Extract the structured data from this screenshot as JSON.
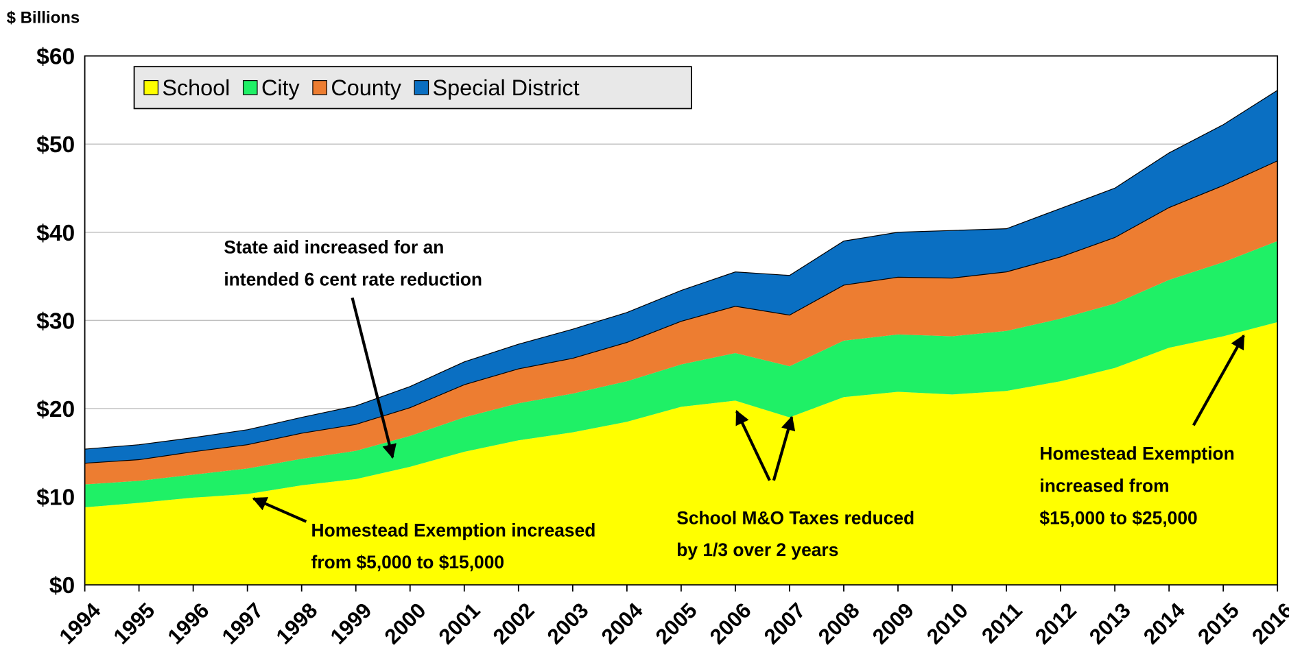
{
  "chart_data": {
    "type": "stacked_area",
    "y_label": "$ Billions",
    "categories": [
      "1994",
      "1995",
      "1996",
      "1997",
      "1998",
      "1999",
      "2000",
      "2001",
      "2002",
      "2003",
      "2004",
      "2005",
      "2006",
      "2007",
      "2008",
      "2009",
      "2010",
      "2011",
      "2012",
      "2013",
      "2014",
      "2015",
      "2016"
    ],
    "series": [
      {
        "name": "School",
        "color": "#ffff00",
        "values": [
          8.8,
          9.3,
          9.9,
          10.3,
          11.3,
          12.0,
          13.4,
          15.1,
          16.4,
          17.3,
          18.5,
          20.2,
          20.9,
          19.0,
          21.3,
          21.9,
          21.6,
          22.0,
          23.1,
          24.6,
          26.9,
          28.2,
          29.8
        ]
      },
      {
        "name": "City",
        "color": "#1ff066",
        "values": [
          2.6,
          2.5,
          2.6,
          2.9,
          3.0,
          3.2,
          3.5,
          3.9,
          4.2,
          4.4,
          4.6,
          4.8,
          5.4,
          5.8,
          6.4,
          6.5,
          6.6,
          6.8,
          7.1,
          7.3,
          7.7,
          8.4,
          9.2
        ]
      },
      {
        "name": "County",
        "color": "#ed7d31",
        "values": [
          2.4,
          2.4,
          2.6,
          2.7,
          2.9,
          3.0,
          3.2,
          3.7,
          3.9,
          4.0,
          4.4,
          4.9,
          5.3,
          5.8,
          6.3,
          6.5,
          6.6,
          6.7,
          7.0,
          7.5,
          8.2,
          8.7,
          9.1
        ]
      },
      {
        "name": "Special District",
        "color": "#0a6fc2",
        "values": [
          1.6,
          1.7,
          1.6,
          1.7,
          1.8,
          2.1,
          2.4,
          2.6,
          2.8,
          3.3,
          3.4,
          3.5,
          3.9,
          4.5,
          5.0,
          5.1,
          5.4,
          4.9,
          5.5,
          5.6,
          6.2,
          6.9,
          8.0
        ]
      }
    ],
    "ylim": [
      0,
      60
    ],
    "yticks": [
      {
        "value": 0,
        "label": "$0"
      },
      {
        "value": 10,
        "label": "$10"
      },
      {
        "value": 20,
        "label": "$20"
      },
      {
        "value": 30,
        "label": "$30"
      },
      {
        "value": 40,
        "label": "$40"
      },
      {
        "value": 50,
        "label": "$50"
      },
      {
        "value": 60,
        "label": "$60"
      }
    ],
    "grid": true,
    "legend": "top-left",
    "annotations": [
      [
        "State aid increased for an",
        "intended 6 cent rate reduction"
      ],
      [
        "Homestead Exemption increased",
        "from $5,000 to $15,000"
      ],
      [
        "School M&O Taxes reduced",
        "by 1/3 over 2 years"
      ],
      [
        "Homestead Exemption",
        "increased from",
        "$15,000 to $25,000"
      ]
    ]
  }
}
